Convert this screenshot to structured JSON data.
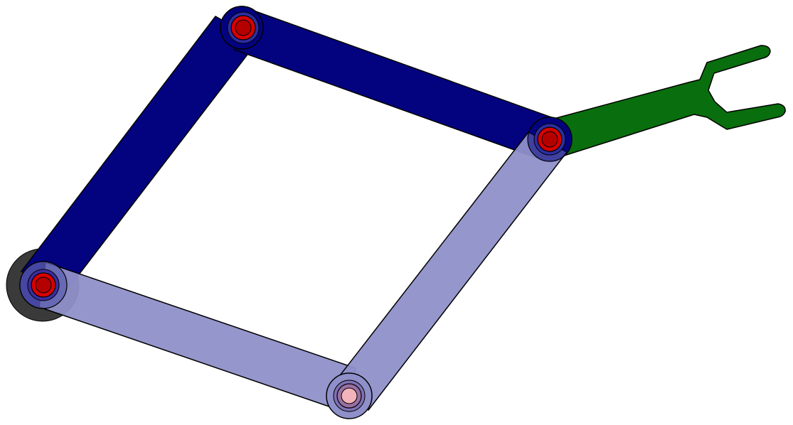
{
  "diagram": {
    "type": "four-bar parallelogram linkage with gripper",
    "colors": {
      "background": "#ffffff",
      "link_solid": "#030380",
      "link_solid_stroke": "#000000",
      "link_translucent": "#8f90c9",
      "link_translucent_overlap": "#5d5fae",
      "gripper": "#096e0d",
      "base": "#3a3a3a",
      "pin_outer": "#d80000",
      "pin_inner": "#b50000",
      "pin_light": "#f2b4ba",
      "pin_light_ring": "#9a6fa2"
    },
    "parts": [
      {
        "name": "ground-base",
        "kind": "base",
        "shape": "disk"
      },
      {
        "name": "upper-left-link",
        "kind": "link",
        "style": "solid"
      },
      {
        "name": "upper-right-link",
        "kind": "link",
        "style": "solid"
      },
      {
        "name": "lower-left-link",
        "kind": "link",
        "style": "translucent"
      },
      {
        "name": "lower-right-link",
        "kind": "link",
        "style": "translucent"
      },
      {
        "name": "gripper-arm",
        "kind": "end-effector",
        "shape": "two-prong fork"
      }
    ],
    "joints": [
      {
        "name": "base-joint",
        "style": "red"
      },
      {
        "name": "top-joint",
        "style": "red"
      },
      {
        "name": "right-joint",
        "style": "red"
      },
      {
        "name": "bottom-joint",
        "style": "light"
      }
    ]
  }
}
